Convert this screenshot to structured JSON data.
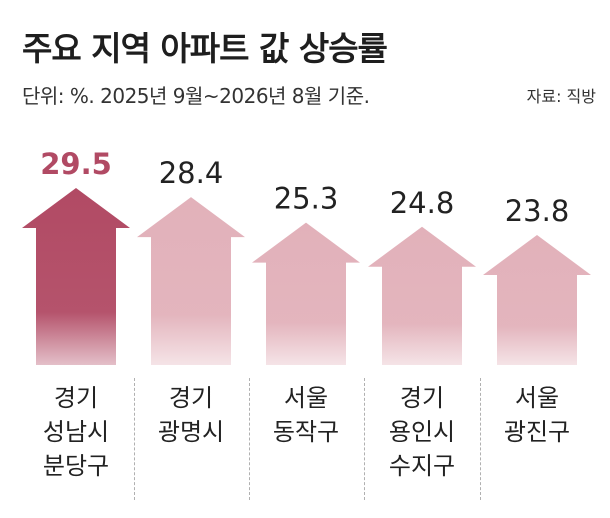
{
  "title": "주요 지역 아파트 값 상승률",
  "subtitle": "단위: %. 2025년 9월~2026년 8월 기준.",
  "source": "자료: 직방",
  "colors": {
    "highlight": "#b14a64",
    "highlight_text": "#b14a64",
    "bar": "#e2b1ba",
    "value_text": "#222222"
  },
  "chart_data": {
    "type": "bar",
    "title": "주요 지역 아파트 값 상승률",
    "subtitle": "단위: %. 2025년 9월~2026년 8월 기준.",
    "categories": [
      [
        "경기",
        "성남시",
        "분당구"
      ],
      [
        "경기",
        "광명시"
      ],
      [
        "서울",
        "동작구"
      ],
      [
        "경기",
        "용인시",
        "수지구"
      ],
      [
        "서울",
        "광진구"
      ]
    ],
    "values": [
      29.5,
      28.4,
      25.3,
      24.8,
      23.8
    ],
    "value_labels": [
      "29.5",
      "28.4",
      "25.3",
      "24.8",
      "23.8"
    ],
    "highlight_index": 0,
    "unit": "%"
  }
}
